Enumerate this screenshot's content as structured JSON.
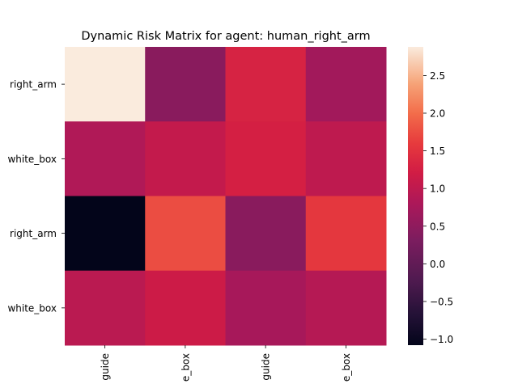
{
  "chart_data": {
    "type": "heatmap",
    "title": "Dynamic Risk Matrix for agent: human_right_arm",
    "xlabel": "",
    "ylabel": "",
    "x_tick_labels": [
      "guide",
      "e_box",
      "guide",
      "e_box"
    ],
    "y_tick_labels": [
      "right_arm",
      "white_box",
      "right_arm",
      "white_box"
    ],
    "values": [
      [
        2.88,
        0.45,
        1.3,
        0.7
      ],
      [
        0.85,
        1.05,
        1.25,
        1.0
      ],
      [
        -1.08,
        1.75,
        0.45,
        1.55
      ],
      [
        0.95,
        1.15,
        0.75,
        0.9
      ]
    ],
    "colorbar": {
      "vmin": -1.08,
      "vmax": 2.88,
      "ticks": [
        2.5,
        2.0,
        1.5,
        1.0,
        0.5,
        0.0,
        -0.5,
        -1.0
      ],
      "tick_labels": [
        "2.5",
        "2.0",
        "1.5",
        "1.0",
        "0.5",
        "0.0",
        "−0.5",
        "−1.0"
      ]
    },
    "colormap": "rocket",
    "grid": false,
    "legend": "colorbar-right"
  }
}
